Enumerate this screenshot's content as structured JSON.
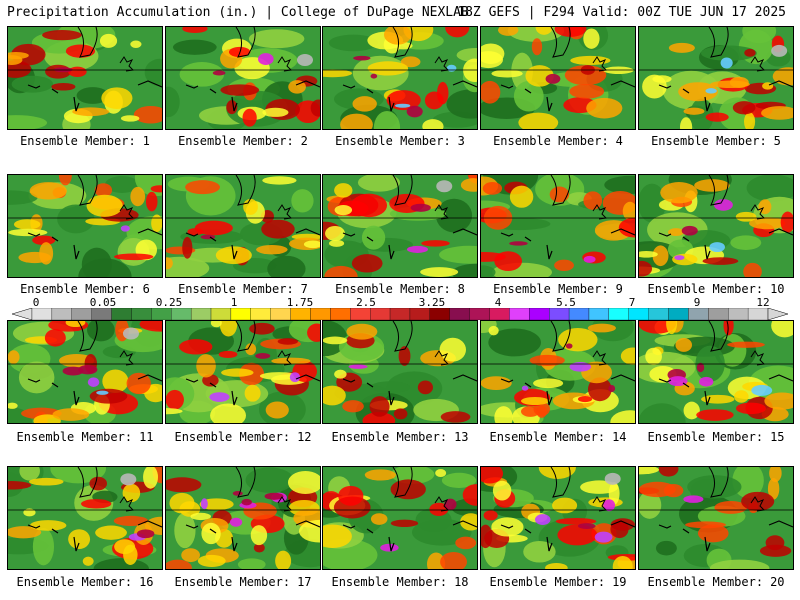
{
  "header": {
    "title_left": "Precipitation Accumulation (in.) | College of DuPage NEXLAB",
    "title_right": "18Z GEFS | F294 Valid: 00Z TUE JUN 17 2025"
  },
  "member_label": "Ensemble Member:",
  "members": [
    {
      "number": 1,
      "fill": 0.3,
      "heavy": 0.05
    },
    {
      "number": 2,
      "fill": 0.25,
      "heavy": 0.1
    },
    {
      "number": 3,
      "fill": 0.3,
      "heavy": 0.25
    },
    {
      "number": 4,
      "fill": 0.35,
      "heavy": 0.05
    },
    {
      "number": 5,
      "fill": 0.4,
      "heavy": 0.1
    },
    {
      "number": 6,
      "fill": 0.4,
      "heavy": 0.05
    },
    {
      "number": 7,
      "fill": 0.3,
      "heavy": 0.05
    },
    {
      "number": 8,
      "fill": 0.35,
      "heavy": 0.1
    },
    {
      "number": 9,
      "fill": 0.25,
      "heavy": 0.08
    },
    {
      "number": 10,
      "fill": 0.35,
      "heavy": 0.2
    },
    {
      "number": 11,
      "fill": 0.5,
      "heavy": 0.2
    },
    {
      "number": 12,
      "fill": 0.5,
      "heavy": 0.15
    },
    {
      "number": 13,
      "fill": 0.25,
      "heavy": 0.05
    },
    {
      "number": 14,
      "fill": 0.45,
      "heavy": 0.2
    },
    {
      "number": 15,
      "fill": 0.45,
      "heavy": 0.25
    },
    {
      "number": 16,
      "fill": 0.4,
      "heavy": 0.1
    },
    {
      "number": 17,
      "fill": 0.5,
      "heavy": 0.35
    },
    {
      "number": 18,
      "fill": 0.3,
      "heavy": 0.08
    },
    {
      "number": 19,
      "fill": 0.55,
      "heavy": 0.2
    },
    {
      "number": 20,
      "fill": 0.2,
      "heavy": 0.05
    }
  ],
  "colorbar": {
    "labels": [
      "0",
      "0.05",
      "0.25",
      "1",
      "1.75",
      "2.5",
      "3.25",
      "4",
      "5.5",
      "7",
      "9",
      "12"
    ],
    "colors": [
      "#e0e0e0",
      "#bdbdbd",
      "#9e9e9e",
      "#7a7a7a",
      "#2e7d32",
      "#388e3c",
      "#43a047",
      "#66bb6a",
      "#9ccc65",
      "#cddc39",
      "#ffff00",
      "#ffeb3b",
      "#ffd54f",
      "#ffb300",
      "#ff9800",
      "#ff6f00",
      "#f44336",
      "#e53935",
      "#c62828",
      "#b71c1c",
      "#8b0000",
      "#880e4f",
      "#ad1457",
      "#d81b60",
      "#e040fb",
      "#aa00ff",
      "#7c4dff",
      "#448aff",
      "#40c4ff",
      "#18ffff",
      "#00e5ff",
      "#26c6da",
      "#00acc1",
      "#90a4ae",
      "#9e9e9e",
      "#bdbdbd",
      "#d6d6d6"
    ]
  }
}
